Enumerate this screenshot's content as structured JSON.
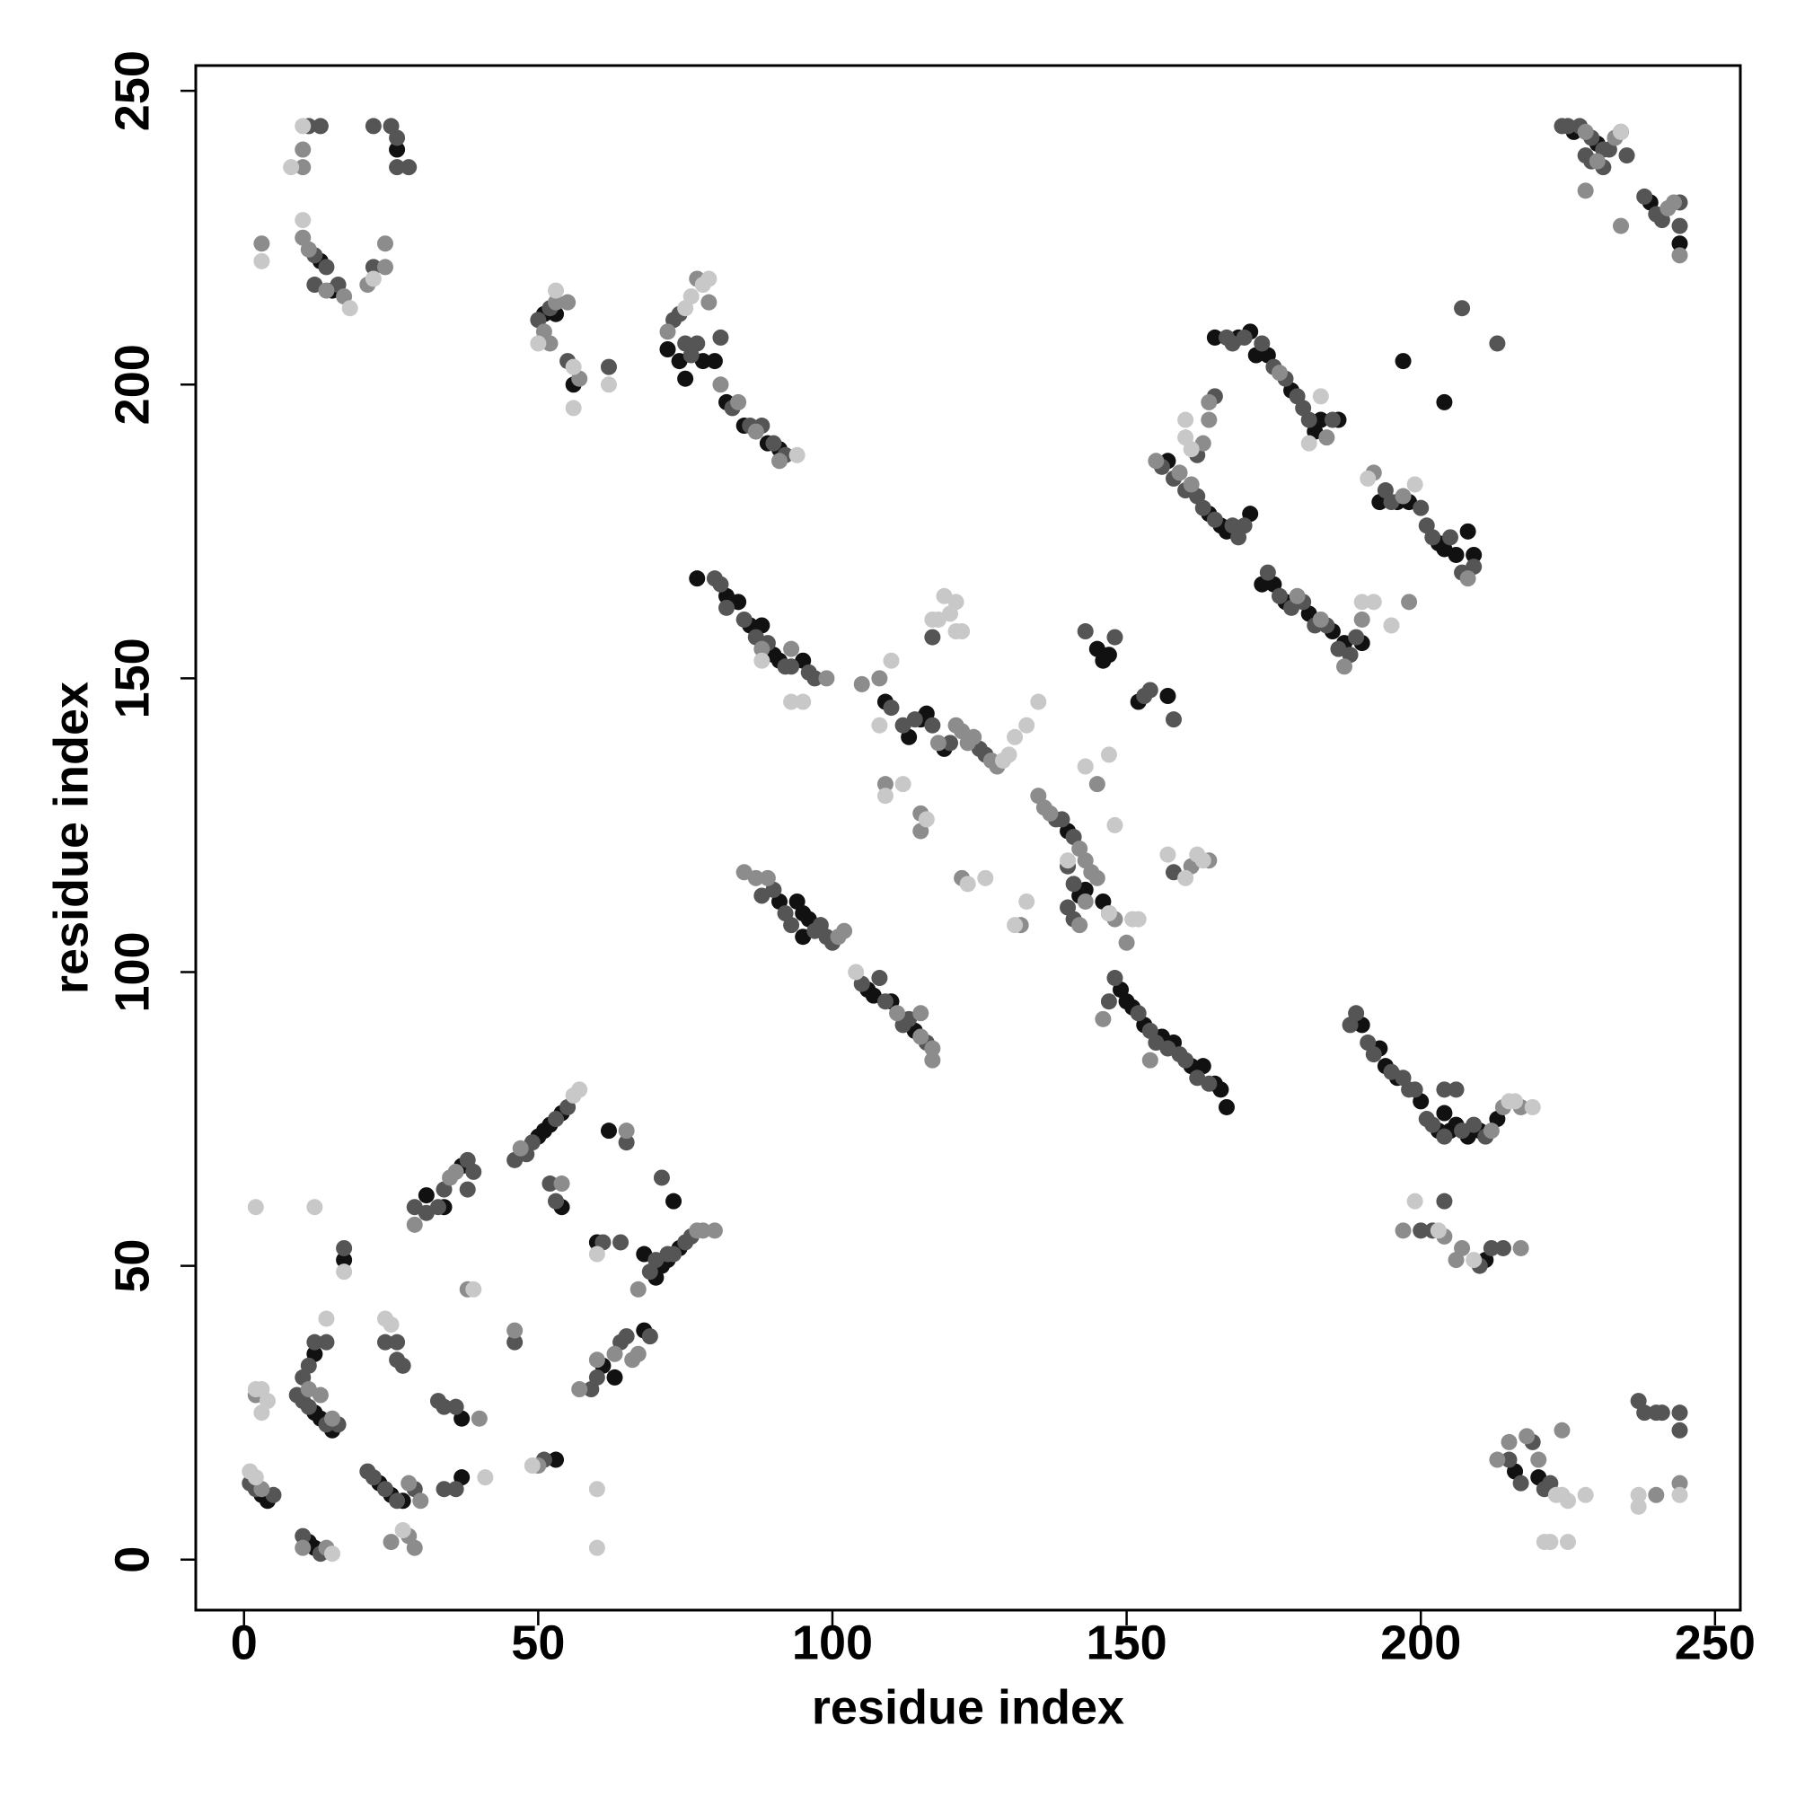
{
  "chart_data": {
    "type": "scatter",
    "x_label": "residue index",
    "y_label": "residue index",
    "xlim": [
      -8.2,
      254.3
    ],
    "ylim": [
      -8.6,
      254.3
    ],
    "xticks": [
      0,
      50,
      100,
      150,
      200,
      250
    ],
    "yticks": [
      0,
      50,
      100,
      150,
      200,
      250
    ],
    "grid": false,
    "series": [
      {
        "color": "#111111",
        "x": [
          3,
          4,
          12,
          11,
          12,
          13,
          15,
          12,
          17,
          23,
          25,
          27,
          31,
          34,
          37,
          37,
          37,
          50,
          52,
          54,
          51,
          53,
          54,
          61,
          63,
          60,
          62,
          68,
          70,
          72,
          74,
          71,
          73,
          68,
          13,
          15,
          26,
          51,
          53,
          56,
          72,
          74,
          75,
          78,
          80,
          82,
          85,
          89,
          91,
          77,
          82,
          84,
          86,
          88,
          90,
          91,
          95,
          91,
          94,
          95,
          96,
          95,
          106,
          107,
          110,
          114,
          109,
          113,
          115,
          116,
          119,
          140,
          142,
          143,
          146,
          147,
          145,
          146,
          147,
          152,
          157,
          149,
          150,
          151,
          153,
          156,
          158,
          161,
          163,
          165,
          167,
          166,
          165,
          169,
          171,
          172,
          174,
          178,
          182,
          183,
          186,
          157,
          164,
          166,
          167,
          171,
          173,
          175,
          177,
          181,
          185,
          187,
          190,
          193,
          196,
          198,
          203,
          204,
          206,
          208,
          209,
          197,
          204,
          190,
          193,
          194,
          196,
          200,
          203,
          205,
          206,
          208,
          210,
          213,
          211,
          204,
          216,
          220,
          230,
          226,
          234,
          239,
          244
        ],
        "values": [
          11,
          10,
          2,
          3,
          25,
          24,
          22,
          35,
          51,
          13,
          11,
          10,
          62,
          60,
          67,
          24,
          14,
          72,
          74,
          76,
          73,
          17,
          60,
          33,
          31,
          54,
          73,
          39,
          48,
          51,
          53,
          50,
          61,
          52,
          221,
          216,
          240,
          212,
          212,
          200,
          206,
          204,
          201,
          204,
          204,
          197,
          193,
          190,
          189,
          167,
          164,
          163,
          159,
          159,
          154,
          153,
          153,
          112,
          112,
          110,
          109,
          106,
          97,
          96,
          95,
          90,
          146,
          140,
          143,
          144,
          138,
          124,
          113,
          114,
          112,
          110,
          155,
          153,
          154,
          146,
          147,
          97,
          95,
          94,
          91,
          89,
          88,
          84,
          84,
          81,
          77,
          80,
          208,
          208,
          209,
          205,
          205,
          199,
          192,
          194,
          194,
          187,
          178,
          176,
          175,
          178,
          166,
          166,
          163,
          161,
          158,
          156,
          156,
          180,
          180,
          180,
          173,
          172,
          171,
          175,
          171,
          204,
          197,
          91,
          87,
          84,
          82,
          78,
          73,
          73,
          74,
          72,
          73,
          75,
          51,
          76,
          15,
          14,
          241,
          243,
          243,
          231,
          224
        ]
      },
      {
        "color": "#555555",
        "x": [
          1,
          2,
          5,
          10,
          13,
          9,
          10,
          11,
          14,
          16,
          10,
          11,
          12,
          14,
          17,
          21,
          22,
          24,
          26,
          29,
          24,
          26,
          26,
          27,
          29,
          31,
          33,
          34,
          38,
          39,
          38,
          33,
          34,
          36,
          36,
          34,
          46,
          46,
          48,
          49,
          53,
          55,
          52,
          51,
          53,
          59,
          60,
          64,
          65,
          69,
          61,
          64,
          65,
          69,
          73,
          75,
          76,
          70,
          72,
          71,
          11,
          13,
          12,
          14,
          12,
          16,
          22,
          22,
          25,
          26,
          26,
          28,
          50,
          52,
          55,
          62,
          73,
          74,
          75,
          76,
          77,
          81,
          83,
          86,
          88,
          90,
          92,
          80,
          81,
          82,
          85,
          87,
          89,
          92,
          93,
          96,
          97,
          88,
          90,
          92,
          93,
          97,
          98,
          99,
          100,
          105,
          108,
          109,
          112,
          113,
          116,
          110,
          112,
          114,
          117,
          120,
          125,
          126,
          138,
          139,
          141,
          140,
          141,
          141,
          140,
          143,
          148,
          153,
          154,
          158,
          117,
          158,
          147,
          148,
          152,
          154,
          155,
          157,
          159,
          160,
          162,
          164,
          167,
          168,
          170,
          173,
          175,
          177,
          179,
          180,
          181,
          185,
          156,
          158,
          160,
          162,
          163,
          165,
          168,
          169,
          170,
          162,
          165,
          174,
          176,
          178,
          180,
          182,
          184,
          186,
          188,
          189,
          194,
          195,
          200,
          201,
          202,
          205,
          207,
          209,
          207,
          213,
          188,
          189,
          191,
          192,
          195,
          197,
          198,
          199,
          201,
          202,
          204,
          207,
          209,
          211,
          206,
          204,
          200,
          202,
          204,
          210,
          212,
          214,
          215,
          217,
          219,
          221,
          222,
          237,
          238,
          240,
          241,
          244,
          244,
          224,
          225,
          227,
          229,
          231,
          232,
          228,
          229,
          231,
          238,
          240,
          241,
          244,
          244,
          235
        ],
        "values": [
          13,
          12,
          11,
          4,
          1,
          28,
          27,
          26,
          23,
          23,
          31,
          33,
          37,
          37,
          53,
          15,
          14,
          12,
          10,
          12,
          37,
          37,
          34,
          33,
          60,
          59,
          60,
          63,
          68,
          66,
          63,
          27,
          26,
          26,
          12,
          12,
          37,
          68,
          69,
          71,
          75,
          77,
          64,
          17,
          61,
          29,
          31,
          37,
          38,
          38,
          54,
          54,
          71,
          49,
          52,
          54,
          55,
          51,
          52,
          65,
          244,
          244,
          222,
          220,
          217,
          217,
          220,
          244,
          244,
          242,
          237,
          237,
          211,
          213,
          204,
          203,
          211,
          212,
          207,
          205,
          207,
          208,
          196,
          193,
          193,
          190,
          188,
          167,
          166,
          162,
          160,
          157,
          156,
          152,
          152,
          151,
          150,
          113,
          114,
          110,
          108,
          107,
          108,
          106,
          105,
          98,
          99,
          95,
          91,
          92,
          88,
          145,
          142,
          143,
          142,
          139,
          138,
          137,
          126,
          126,
          123,
          118,
          115,
          109,
          111,
          158,
          157,
          147,
          148,
          143,
          157,
          117,
          95,
          99,
          93,
          90,
          88,
          87,
          86,
          85,
          82,
          81,
          208,
          207,
          208,
          207,
          203,
          201,
          198,
          196,
          194,
          194,
          186,
          184,
          182,
          181,
          179,
          177,
          176,
          174,
          176,
          188,
          198,
          168,
          164,
          162,
          163,
          159,
          159,
          155,
          154,
          157,
          182,
          180,
          179,
          176,
          174,
          174,
          168,
          169,
          213,
          207,
          91,
          93,
          88,
          86,
          83,
          82,
          80,
          80,
          75,
          74,
          72,
          73,
          74,
          72,
          80,
          80,
          56,
          56,
          61,
          50,
          53,
          53,
          17,
          13,
          20,
          12,
          13,
          27,
          25,
          25,
          25,
          25,
          22,
          244,
          244,
          244,
          242,
          240,
          240,
          239,
          238,
          237,
          232,
          229,
          228,
          231,
          227,
          239
        ]
      },
      {
        "color": "#8c8c8c",
        "x": [
          3,
          2,
          11,
          10,
          14,
          15,
          13,
          28,
          30,
          25,
          28,
          29,
          29,
          35,
          36,
          38,
          40,
          46,
          47,
          50,
          54,
          57,
          60,
          66,
          67,
          63,
          65,
          67,
          77,
          78,
          80,
          3,
          10,
          10,
          10,
          11,
          14,
          17,
          21,
          24,
          24,
          51,
          52,
          53,
          55,
          57,
          72,
          77,
          79,
          81,
          84,
          87,
          91,
          88,
          99,
          93,
          85,
          87,
          89,
          101,
          102,
          111,
          115,
          117,
          115,
          117,
          105,
          108,
          118,
          121,
          122,
          123,
          124,
          127,
          128,
          135,
          136,
          137,
          142,
          143,
          144,
          145,
          143,
          142,
          148,
          150,
          122,
          132,
          161,
          164,
          145,
          115,
          115,
          109,
          146,
          154,
          155,
          159,
          161,
          163,
          164,
          164,
          176,
          184,
          179,
          183,
          187,
          192,
          197,
          208,
          198,
          190,
          213,
          215,
          218,
          220,
          224,
          244,
          240,
          214,
          217,
          212,
          197,
          206,
          207,
          217,
          204,
          228,
          233,
          230,
          228,
          234,
          242,
          243,
          244
        ],
        "values": [
          12,
          28,
          29,
          2,
          2,
          24,
          28,
          13,
          10,
          3,
          4,
          2,
          57,
          65,
          66,
          46,
          24,
          39,
          70,
          16,
          64,
          29,
          34,
          34,
          35,
          35,
          73,
          46,
          56,
          56,
          56,
          224,
          240,
          237,
          225,
          223,
          216,
          215,
          217,
          220,
          224,
          209,
          207,
          214,
          214,
          201,
          209,
          218,
          214,
          200,
          197,
          192,
          187,
          155,
          150,
          155,
          117,
          116,
          116,
          106,
          107,
          93,
          89,
          87,
          93,
          85,
          149,
          150,
          139,
          142,
          141,
          139,
          140,
          136,
          135,
          130,
          128,
          127,
          121,
          119,
          117,
          116,
          112,
          108,
          109,
          105,
          116,
          108,
          118,
          119,
          132,
          127,
          124,
          132,
          92,
          85,
          187,
          185,
          183,
          190,
          194,
          197,
          202,
          191,
          164,
          160,
          152,
          185,
          181,
          167,
          163,
          160,
          17,
          20,
          21,
          17,
          22,
          13,
          11,
          77,
          77,
          73,
          56,
          51,
          53,
          53,
          55,
          243,
          242,
          238,
          233,
          227,
          230,
          231,
          222
        ]
      },
      {
        "color": "#c8c8c8",
        "x": [
          1,
          2,
          2,
          3,
          4,
          3,
          2,
          12,
          15,
          14,
          17,
          24,
          25,
          27,
          39,
          41,
          49,
          60,
          60,
          56,
          57,
          60,
          3,
          8,
          10,
          10,
          18,
          22,
          53,
          56,
          62,
          76,
          78,
          79,
          75,
          50,
          56,
          94,
          93,
          95,
          88,
          104,
          108,
          110,
          109,
          112,
          116,
          123,
          126,
          129,
          130,
          131,
          133,
          135,
          131,
          133,
          117,
          118,
          119,
          120,
          121,
          121,
          122,
          140,
          143,
          147,
          148,
          147,
          151,
          152,
          160,
          162,
          163,
          157,
          160,
          160,
          161,
          183,
          181,
          190,
          192,
          195,
          199,
          191,
          219,
          215,
          216,
          199,
          203,
          209,
          225,
          224,
          223,
          221,
          222,
          225,
          228,
          237,
          237,
          244,
          234
        ],
        "values": [
          15,
          14,
          29,
          29,
          27,
          25,
          60,
          60,
          1,
          41,
          49,
          41,
          40,
          5,
          46,
          14,
          16,
          12,
          2,
          79,
          80,
          52,
          221,
          237,
          244,
          228,
          213,
          218,
          216,
          196,
          200,
          215,
          217,
          218,
          213,
          207,
          203,
          188,
          146,
          146,
          153,
          100,
          142,
          153,
          130,
          132,
          126,
          115,
          116,
          136,
          137,
          140,
          142,
          146,
          108,
          112,
          160,
          160,
          164,
          161,
          158,
          163,
          158,
          119,
          135,
          137,
          125,
          110,
          109,
          109,
          116,
          120,
          119,
          120,
          194,
          191,
          189,
          198,
          190,
          163,
          163,
          159,
          183,
          184,
          77,
          78,
          78,
          61,
          56,
          51,
          10,
          11,
          11,
          3,
          3,
          3,
          11,
          11,
          9,
          11,
          243
        ]
      }
    ]
  }
}
